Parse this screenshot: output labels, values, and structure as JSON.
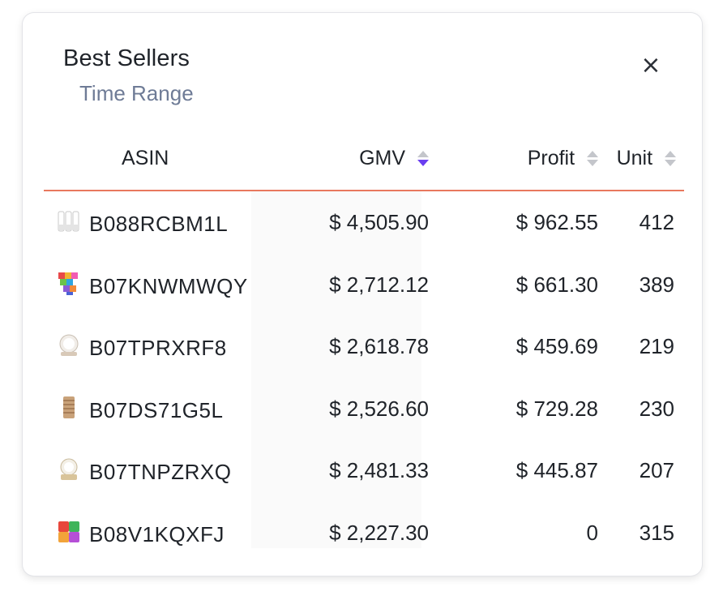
{
  "widget": {
    "title": "Best Sellers",
    "subtitle": "Time Range",
    "close_label": "×"
  },
  "table": {
    "columns": [
      {
        "label": "ASIN",
        "sortable": false
      },
      {
        "label": "GMV",
        "sortable": true,
        "sort": "descending"
      },
      {
        "label": "Profit",
        "sortable": true,
        "sort": "none"
      },
      {
        "label": "Unit",
        "sortable": true,
        "sort": "none"
      }
    ],
    "rows": [
      {
        "thumb": "product-thumbnail-icon",
        "asin": "B088RCBM1L",
        "gmv": "$ 4,505.90",
        "profit": "$ 962.55",
        "unit": "412"
      },
      {
        "thumb": "product-thumbnail-icon",
        "asin": "B07KNWMWQY",
        "gmv": "$ 2,712.12",
        "profit": "$ 661.30",
        "unit": "389"
      },
      {
        "thumb": "product-thumbnail-icon",
        "asin": "B07TPRXRF8",
        "gmv": "$ 2,618.78",
        "profit": "$ 459.69",
        "unit": "219"
      },
      {
        "thumb": "product-thumbnail-icon",
        "asin": "B07DS71G5L",
        "gmv": "$ 2,526.60",
        "profit": "$ 729.28",
        "unit": "230"
      },
      {
        "thumb": "product-thumbnail-icon",
        "asin": "B07TNPZRXQ",
        "gmv": "$ 2,481.33",
        "profit": "$ 445.87",
        "unit": "207"
      },
      {
        "thumb": "product-thumbnail-icon",
        "asin": "B08V1KQXFJ",
        "gmv": "$ 2,227.30",
        "profit": "0",
        "unit": "315"
      }
    ]
  },
  "colors": {
    "header_divider": "#e8785e",
    "sort_active": "#6a3ef0",
    "sort_inactive": "#c4c6cb",
    "subtitle": "#6e7b96"
  }
}
